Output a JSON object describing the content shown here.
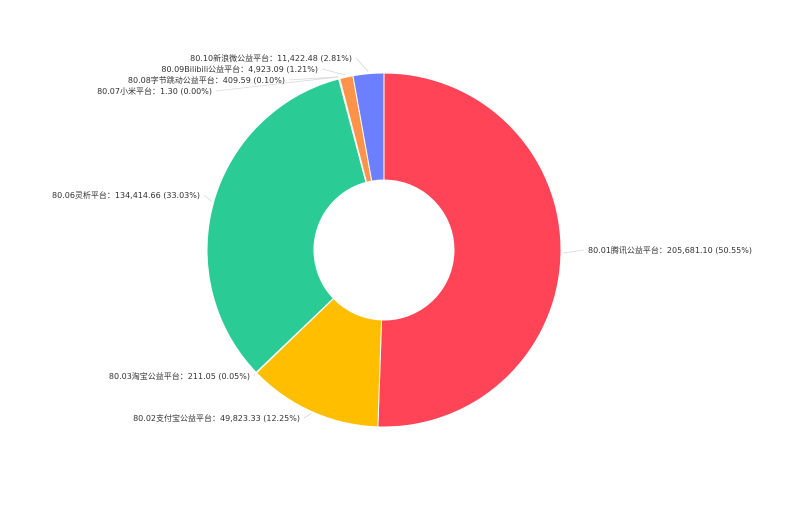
{
  "chart_data": {
    "type": "pie",
    "donut": true,
    "series": [
      {
        "name": "80.01腾讯公益平台",
        "value": 205681.1,
        "percent": "50.55%",
        "label": "80.01腾讯公益平台：205,681.10 (50.55%)",
        "color": "#ff4457"
      },
      {
        "name": "80.02支付宝公益平台",
        "value": 49823.33,
        "percent": "12.25%",
        "label": "80.02支付宝公益平台：49,823.33 (12.25%)",
        "color": "#ffbe00"
      },
      {
        "name": "80.03淘宝公益平台",
        "value": 211.05,
        "percent": "0.05%",
        "label": "80.03淘宝公益平台：211.05 (0.05%)",
        "color": "#ffa64a"
      },
      {
        "name": "80.06灵析平台",
        "value": 134414.66,
        "percent": "33.03%",
        "label": "80.06灵析平台：134,414.66 (33.03%)",
        "color": "#2bcb95"
      },
      {
        "name": "80.07小米平台",
        "value": 1.3,
        "percent": "0.00%",
        "label": "80.07小米平台：1.30 (0.00%)",
        "color": "#2bcb95"
      },
      {
        "name": "80.08字节跳动公益平台",
        "value": 409.59,
        "percent": "0.10%",
        "label": "80.08字节跳动公益平台：409.59 (0.10%)",
        "color": "#e8e8e8"
      },
      {
        "name": "80.09Bilibili公益平台",
        "value": 4923.09,
        "percent": "1.21%",
        "label": "80.09Bilibili公益平台：4,923.09 (1.21%)",
        "color": "#ff9349"
      },
      {
        "name": "80.10新浪微公益平台",
        "value": 11422.48,
        "percent": "2.81%",
        "label": "80.10新浪微公益平台：11,422.48 (2.81%)",
        "color": "#6c80ff"
      }
    ]
  }
}
